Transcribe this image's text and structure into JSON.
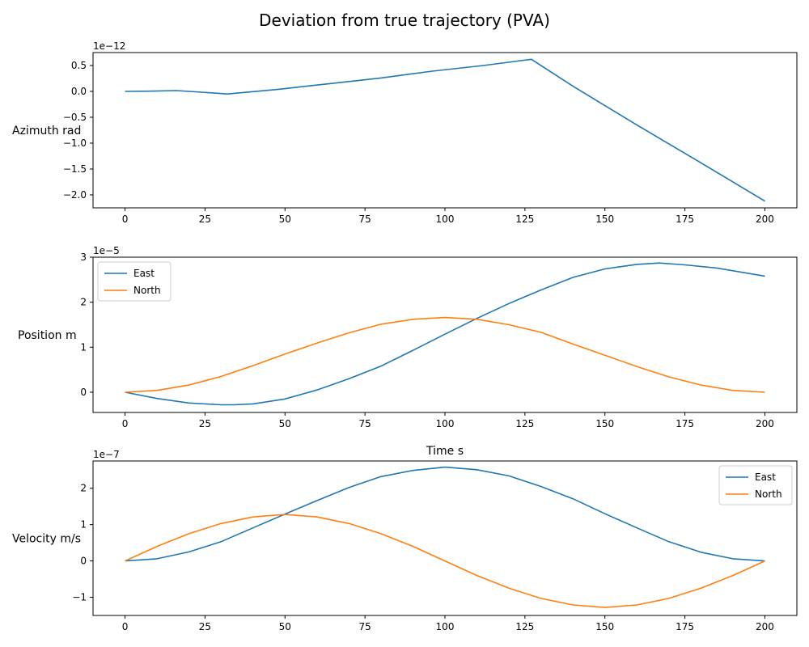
{
  "figure": {
    "title": "Deviation from true trajectory (PVA)",
    "colors": {
      "east": "#1f77b4",
      "north": "#ff7f0e",
      "axes": "#000000",
      "legend_border": "#cccccc"
    }
  },
  "chart_data": [
    {
      "type": "line",
      "title": "",
      "xlabel": "",
      "ylabel": "Azimuth rad",
      "offset_text": "1e−12",
      "xlim": [
        -10,
        210
      ],
      "ylim": [
        -2.25,
        0.75
      ],
      "xticks": [
        0,
        25,
        50,
        75,
        100,
        125,
        150,
        175,
        200
      ],
      "xtick_labels": [
        "0",
        "25",
        "50",
        "75",
        "100",
        "125",
        "150",
        "175",
        "200"
      ],
      "yticks": [
        0.5,
        0.0,
        -0.5,
        -1.0,
        -1.5,
        -2.0
      ],
      "ytick_labels": [
        "0.5",
        "0.0",
        "−0.5",
        "−1.0",
        "−1.5",
        "−2.0"
      ],
      "legend": null,
      "grid": false,
      "series": [
        {
          "name": "",
          "color": "#1f77b4",
          "x": [
            0,
            8,
            16,
            24,
            32,
            48,
            64,
            80,
            96,
            112,
            127,
            140,
            160,
            180,
            200
          ],
          "y": [
            0.0,
            0.005,
            0.015,
            -0.015,
            -0.05,
            0.04,
            0.15,
            0.26,
            0.39,
            0.5,
            0.62,
            0.1,
            -0.65,
            -1.38,
            -2.12
          ]
        }
      ]
    },
    {
      "type": "line",
      "title": "",
      "xlabel": "Time s",
      "ylabel": "Position m",
      "offset_text": "1e−5",
      "xlim": [
        -10,
        210
      ],
      "ylim": [
        -0.45,
        3.0
      ],
      "xticks": [
        0,
        25,
        50,
        75,
        100,
        125,
        150,
        175,
        200
      ],
      "xtick_labels": [
        "0",
        "25",
        "50",
        "75",
        "100",
        "125",
        "150",
        "175",
        "200"
      ],
      "yticks": [
        0,
        1,
        2,
        3
      ],
      "ytick_labels": [
        "0",
        "1",
        "2",
        "3"
      ],
      "legend": "top-left",
      "grid": false,
      "series": [
        {
          "name": "East",
          "color": "#1f77b4",
          "x": [
            0,
            10,
            20,
            30,
            34,
            40,
            50,
            60,
            70,
            80,
            90,
            100,
            110,
            120,
            130,
            140,
            150,
            160,
            167,
            175,
            185,
            200
          ],
          "y": [
            0.0,
            -0.14,
            -0.24,
            -0.28,
            -0.28,
            -0.26,
            -0.15,
            0.05,
            0.3,
            0.58,
            0.93,
            1.29,
            1.64,
            1.97,
            2.27,
            2.55,
            2.74,
            2.84,
            2.87,
            2.83,
            2.76,
            2.58
          ]
        },
        {
          "name": "North",
          "color": "#ff7f0e",
          "x": [
            0,
            10,
            20,
            30,
            40,
            50,
            60,
            70,
            80,
            90,
            100,
            110,
            120,
            130,
            140,
            150,
            160,
            170,
            180,
            190,
            200
          ],
          "y": [
            0.0,
            0.04,
            0.16,
            0.35,
            0.59,
            0.85,
            1.09,
            1.32,
            1.51,
            1.62,
            1.66,
            1.62,
            1.5,
            1.33,
            1.07,
            0.82,
            0.57,
            0.34,
            0.16,
            0.04,
            0.0
          ]
        }
      ]
    },
    {
      "type": "line",
      "title": "",
      "xlabel": "",
      "ylabel": "Velocity m/s",
      "offset_text": "1e−7",
      "xlim": [
        -10,
        210
      ],
      "ylim": [
        -1.5,
        2.75
      ],
      "xticks": [
        0,
        25,
        50,
        75,
        100,
        125,
        150,
        175,
        200
      ],
      "xtick_labels": [
        "0",
        "25",
        "50",
        "75",
        "100",
        "125",
        "150",
        "175",
        "200"
      ],
      "yticks": [
        2,
        1,
        0,
        -1
      ],
      "ytick_labels": [
        "2",
        "1",
        "0",
        "−1"
      ],
      "legend": "top-right",
      "grid": false,
      "series": [
        {
          "name": "East",
          "color": "#1f77b4",
          "x": [
            0,
            10,
            20,
            30,
            40,
            50,
            60,
            70,
            80,
            90,
            100,
            110,
            120,
            130,
            140,
            150,
            160,
            170,
            180,
            190,
            200
          ],
          "y": [
            0.0,
            0.06,
            0.25,
            0.53,
            0.91,
            1.29,
            1.66,
            2.02,
            2.32,
            2.49,
            2.58,
            2.51,
            2.34,
            2.05,
            1.71,
            1.3,
            0.91,
            0.53,
            0.24,
            0.06,
            0.0
          ]
        },
        {
          "name": "North",
          "color": "#ff7f0e",
          "x": [
            0,
            10,
            20,
            30,
            40,
            50,
            60,
            70,
            80,
            90,
            100,
            110,
            120,
            130,
            140,
            150,
            160,
            170,
            180,
            190,
            200
          ],
          "y": [
            0.0,
            0.4,
            0.75,
            1.03,
            1.21,
            1.28,
            1.21,
            1.03,
            0.75,
            0.4,
            0.0,
            -0.4,
            -0.75,
            -1.03,
            -1.21,
            -1.28,
            -1.21,
            -1.03,
            -0.75,
            -0.4,
            0.0
          ]
        }
      ]
    }
  ]
}
